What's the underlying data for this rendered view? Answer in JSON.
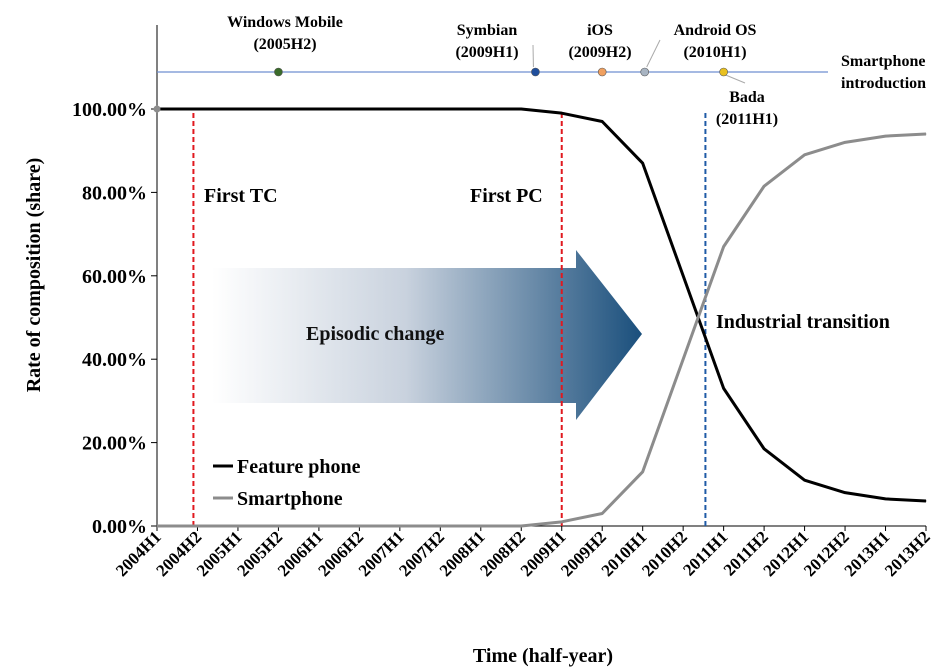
{
  "chart_data": {
    "type": "line",
    "xlabel": "Time (half-year)",
    "ylabel": "Rate of composition (share)",
    "categories": [
      "2004H1",
      "2004H2",
      "2005H1",
      "2005H2",
      "2006H1",
      "2006H2",
      "2007H1",
      "2007H2",
      "2008H1",
      "2008H2",
      "2009H1",
      "2009H2",
      "2010H1",
      "2010H2",
      "2011H1",
      "2011H2",
      "2012H1",
      "2012H2",
      "2013H1",
      "2013H2"
    ],
    "yticks": [
      "0.00%",
      "20.00%",
      "40.00%",
      "60.00%",
      "80.00%",
      "100.00%"
    ],
    "ylim": [
      0,
      100
    ],
    "series": [
      {
        "name": "Feature phone",
        "color": "#000000",
        "values": [
          100,
          100,
          100,
          100,
          100,
          100,
          100,
          100,
          100,
          100,
          99,
          97,
          87,
          60,
          33,
          18.5,
          11,
          8,
          6.5,
          6
        ]
      },
      {
        "name": "Smartphone",
        "color": "#8c8c8c",
        "values": [
          0,
          0,
          0,
          0,
          0,
          0,
          0,
          0,
          0,
          0,
          1,
          3,
          13,
          40,
          67,
          81.5,
          89,
          92,
          93.5,
          94
        ]
      }
    ],
    "legend_position": "bottom-left",
    "grid": false,
    "vlines": [
      {
        "at": 0.9,
        "label": "First TC",
        "color": "#e0191f"
      },
      {
        "at": 10.0,
        "label": "First PC",
        "color": "#e0191f"
      },
      {
        "at": 13.55,
        "label": "",
        "color": "#1f5aa6"
      }
    ],
    "arrow": {
      "label": "Episodic change",
      "color": "#1a4f7c"
    },
    "transition_label": "Industrial transition",
    "timeline": {
      "label_line1": "Smartphone",
      "label_line2": "introduction",
      "line_color": "#6f8fd0",
      "events": [
        {
          "x": 3.0,
          "line1": "Windows Mobile",
          "line2": "(2005H2)",
          "color": "#3a6b2a"
        },
        {
          "x": 9.35,
          "line1": "Symbian",
          "line2": "(2009H1)",
          "color": "#1f4e9c"
        },
        {
          "x": 11.0,
          "line1": "iOS",
          "line2": "(2009H2)",
          "color": "#f0a060"
        },
        {
          "x": 12.05,
          "line1": "Android OS",
          "line2": "(2010H1)",
          "color": "#a8b4c2"
        },
        {
          "x": 14.0,
          "line1": "Bada",
          "line2": "(2011H1)",
          "color": "#e8c020"
        }
      ]
    }
  }
}
